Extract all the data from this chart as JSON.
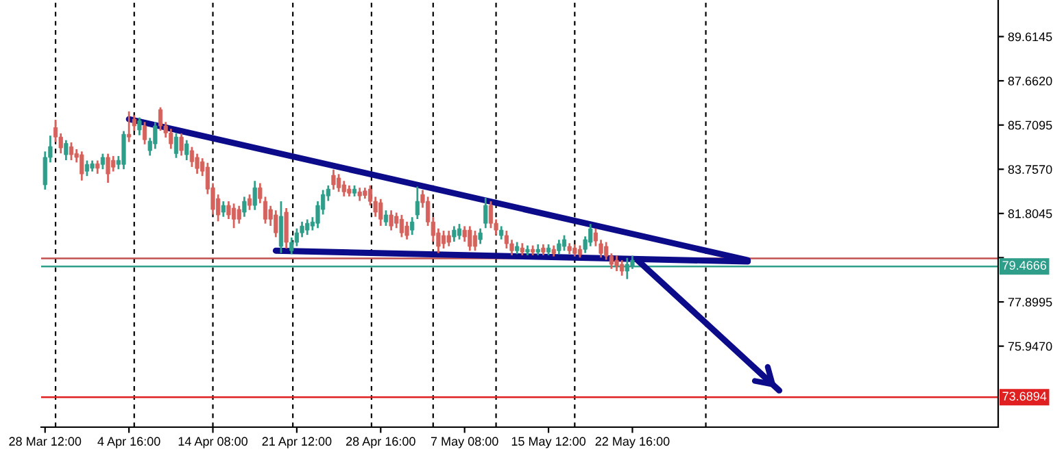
{
  "chart_data": {
    "type": "candlestick",
    "categories": [
      "28 Mar 12:00",
      null,
      null,
      null,
      null,
      null,
      null,
      null,
      null,
      null,
      null,
      null,
      null,
      null,
      null,
      null,
      "4 Apr 16:00",
      null,
      null,
      null,
      null,
      null,
      null,
      null,
      null,
      null,
      null,
      null,
      null,
      null,
      null,
      null,
      "14 Apr 08:00",
      null,
      null,
      null,
      null,
      null,
      null,
      null,
      null,
      null,
      null,
      null,
      null,
      null,
      null,
      null,
      "21 Apr 12:00",
      null,
      null,
      null,
      null,
      null,
      null,
      null,
      null,
      null,
      null,
      null,
      null,
      null,
      null,
      null,
      "28 Apr 16:00",
      null,
      null,
      null,
      null,
      null,
      null,
      null,
      null,
      null,
      null,
      null,
      null,
      null,
      null,
      null,
      "7 May 08:00",
      null,
      null,
      null,
      null,
      null,
      null,
      null,
      null,
      null,
      null,
      null,
      null,
      null,
      null,
      null,
      "15 May 12:00",
      null,
      null,
      null,
      null,
      null,
      null,
      null,
      null,
      null,
      null,
      null,
      null,
      null,
      null,
      null,
      "22 May 16:00",
      null,
      null,
      null,
      null,
      null,
      null,
      null,
      null,
      null,
      null,
      null,
      null,
      null,
      null,
      null,
      null,
      null,
      null,
      null,
      null,
      null,
      null,
      null,
      null,
      null,
      null,
      null,
      null,
      null,
      null,
      null,
      null,
      null,
      null,
      null,
      null,
      null,
      null,
      null,
      null,
      null,
      null,
      null,
      null,
      null,
      null,
      null,
      null,
      null,
      null,
      null,
      null,
      null,
      null,
      null,
      null,
      null,
      null,
      null,
      null,
      null,
      null,
      null,
      null,
      null,
      null,
      null,
      null,
      null
    ],
    "ohlc": [
      [
        83.07,
        84.5,
        82.9,
        84.28
      ],
      [
        84.28,
        85.2,
        84.1,
        84.76
      ],
      [
        85.6,
        85.9,
        85.0,
        85.18
      ],
      [
        85.18,
        85.3,
        84.5,
        84.7
      ],
      [
        84.4,
        85.0,
        84.2,
        84.9
      ],
      [
        84.75,
        84.9,
        84.2,
        84.4
      ],
      [
        84.45,
        84.6,
        84.1,
        84.28
      ],
      [
        84.4,
        84.5,
        83.3,
        83.55
      ],
      [
        83.67,
        84.1,
        83.5,
        83.97
      ],
      [
        83.8,
        84.1,
        83.7,
        84.0
      ],
      [
        84.0,
        84.1,
        83.6,
        83.8
      ],
      [
        83.97,
        84.4,
        83.8,
        84.28
      ],
      [
        84.28,
        84.4,
        83.2,
        83.55
      ],
      [
        84.15,
        84.3,
        83.7,
        83.85
      ],
      [
        83.97,
        84.3,
        83.8,
        84.15
      ],
      [
        83.97,
        85.4,
        83.8,
        85.3
      ],
      [
        85.3,
        86.27,
        85.0,
        85.18
      ],
      [
        85.97,
        86.1,
        85.5,
        85.67
      ],
      [
        85.49,
        86.0,
        85.3,
        85.9
      ],
      [
        85.67,
        85.8,
        84.9,
        85.06
      ],
      [
        84.58,
        85.1,
        84.4,
        85.0
      ],
      [
        84.88,
        85.8,
        84.7,
        85.67
      ],
      [
        86.39,
        86.45,
        85.5,
        85.67
      ],
      [
        85.67,
        85.8,
        85.2,
        85.36
      ],
      [
        85.36,
        85.5,
        84.7,
        84.88
      ],
      [
        84.45,
        85.3,
        84.3,
        85.18
      ],
      [
        85.18,
        85.3,
        84.4,
        84.58
      ],
      [
        84.4,
        85.0,
        84.2,
        84.88
      ],
      [
        84.58,
        84.7,
        83.9,
        84.09
      ],
      [
        84.28,
        84.4,
        83.6,
        83.79
      ],
      [
        84.09,
        84.2,
        83.5,
        83.67
      ],
      [
        83.85,
        84.0,
        82.7,
        82.88
      ],
      [
        82.94,
        83.1,
        81.8,
        81.98
      ],
      [
        82.46,
        82.6,
        81.5,
        81.74
      ],
      [
        81.86,
        82.3,
        81.7,
        82.16
      ],
      [
        82.16,
        82.3,
        81.6,
        81.74
      ],
      [
        82.04,
        82.2,
        81.2,
        81.55
      ],
      [
        81.98,
        82.1,
        81.4,
        81.55
      ],
      [
        81.86,
        82.5,
        81.7,
        82.34
      ],
      [
        82.46,
        82.6,
        82.0,
        82.16
      ],
      [
        82.16,
        83.2,
        82.0,
        82.94
      ],
      [
        82.94,
        83.1,
        82.3,
        82.46
      ],
      [
        82.34,
        82.5,
        81.4,
        81.55
      ],
      [
        81.98,
        82.1,
        81.3,
        81.55
      ],
      [
        81.74,
        81.9,
        80.8,
        80.95
      ],
      [
        80.35,
        82.3,
        80.1,
        81.68
      ],
      [
        81.86,
        82.0,
        80.3,
        80.53
      ],
      [
        80.16,
        80.7,
        80.05,
        80.53
      ],
      [
        80.53,
        81.1,
        80.4,
        80.95
      ],
      [
        80.95,
        81.4,
        80.8,
        81.25
      ],
      [
        81.07,
        81.5,
        80.9,
        81.37
      ],
      [
        81.25,
        81.6,
        81.1,
        81.43
      ],
      [
        81.37,
        82.3,
        81.2,
        82.16
      ],
      [
        81.98,
        82.8,
        81.8,
        82.64
      ],
      [
        82.58,
        83.0,
        82.4,
        82.88
      ],
      [
        83.49,
        83.7,
        82.9,
        83.07
      ],
      [
        83.37,
        83.5,
        82.8,
        82.94
      ],
      [
        83.07,
        83.2,
        82.6,
        82.76
      ],
      [
        82.88,
        83.0,
        82.6,
        82.7
      ],
      [
        82.7,
        83.0,
        82.6,
        82.88
      ],
      [
        82.76,
        82.9,
        82.4,
        82.58
      ],
      [
        82.8,
        82.9,
        82.5,
        82.6
      ],
      [
        82.88,
        83.0,
        82.2,
        82.34
      ],
      [
        82.34,
        82.5,
        81.7,
        81.86
      ],
      [
        82.28,
        82.4,
        81.3,
        81.55
      ],
      [
        81.43,
        81.9,
        81.3,
        81.74
      ],
      [
        81.74,
        81.9,
        81.1,
        81.25
      ],
      [
        81.68,
        81.8,
        81.2,
        81.37
      ],
      [
        81.55,
        81.7,
        80.8,
        80.95
      ],
      [
        81.25,
        81.4,
        80.7,
        80.83
      ],
      [
        81.07,
        81.6,
        80.9,
        81.43
      ],
      [
        81.74,
        82.95,
        81.6,
        82.34
      ],
      [
        82.64,
        82.8,
        82.1,
        82.28
      ],
      [
        82.34,
        82.5,
        81.3,
        81.43
      ],
      [
        81.43,
        81.6,
        80.6,
        80.83
      ],
      [
        80.95,
        81.1,
        80.1,
        80.35
      ],
      [
        80.83,
        81.0,
        80.3,
        80.47
      ],
      [
        80.83,
        81.0,
        80.4,
        80.53
      ],
      [
        80.77,
        81.2,
        80.6,
        81.07
      ],
      [
        80.83,
        81.3,
        80.7,
        81.13
      ],
      [
        81.07,
        81.2,
        80.6,
        80.77
      ],
      [
        81.07,
        81.2,
        80.2,
        80.35
      ],
      [
        80.83,
        81.0,
        80.2,
        80.35
      ],
      [
        80.65,
        81.1,
        80.5,
        80.95
      ],
      [
        81.37,
        82.46,
        81.2,
        82.16
      ],
      [
        82.16,
        82.3,
        81.2,
        81.37
      ],
      [
        81.37,
        81.5,
        80.9,
        81.07
      ],
      [
        80.83,
        81.2,
        80.7,
        81.07
      ],
      [
        80.83,
        81.0,
        80.3,
        80.47
      ],
      [
        80.47,
        80.6,
        80.0,
        80.16
      ],
      [
        80.16,
        80.5,
        80.05,
        80.35
      ],
      [
        80.28,
        80.45,
        80.0,
        80.1
      ],
      [
        80.1,
        80.35,
        80.0,
        80.22
      ],
      [
        80.22,
        80.35,
        80.0,
        80.1
      ],
      [
        80.1,
        80.4,
        80.0,
        80.22
      ],
      [
        80.28,
        80.4,
        80.0,
        80.1
      ],
      [
        80.1,
        80.4,
        80.0,
        80.28
      ],
      [
        80.22,
        80.35,
        79.95,
        80.04
      ],
      [
        80.16,
        80.6,
        80.05,
        80.47
      ],
      [
        80.35,
        80.8,
        80.2,
        80.65
      ],
      [
        80.35,
        80.45,
        80.05,
        80.16
      ],
      [
        80.28,
        80.4,
        79.95,
        80.04
      ],
      [
        80.22,
        80.35,
        79.9,
        79.98
      ],
      [
        80.22,
        80.75,
        80.1,
        80.65
      ],
      [
        80.53,
        81.3,
        80.4,
        81.13
      ],
      [
        80.95,
        81.1,
        80.4,
        80.59
      ],
      [
        80.47,
        80.6,
        79.9,
        80.04
      ],
      [
        80.35,
        80.5,
        79.8,
        79.92
      ],
      [
        79.92,
        80.0,
        79.4,
        79.56
      ],
      [
        79.74,
        79.9,
        79.3,
        79.5
      ],
      [
        79.56,
        79.7,
        79.1,
        79.26
      ],
      [
        79.26,
        79.8,
        78.95,
        79.56
      ],
      [
        79.5,
        79.9,
        79.4,
        79.74
      ],
      null,
      null,
      null,
      null,
      null,
      null,
      null,
      null,
      null,
      null,
      null,
      null,
      null,
      null,
      null,
      null,
      null,
      null,
      null,
      null,
      null,
      null,
      null,
      null,
      null,
      null,
      null,
      null,
      null,
      null,
      null,
      null,
      null,
      null,
      null,
      null,
      null,
      null,
      null,
      null,
      null,
      null,
      null,
      null,
      null,
      null,
      null,
      null,
      null,
      null,
      null,
      null,
      null,
      null,
      null,
      null,
      null,
      null,
      null,
      null,
      null,
      null,
      null,
      null,
      null,
      null,
      null,
      null,
      null
    ],
    "colors": [
      "#2e9e8a",
      "#2e9e8a",
      "#d5625c",
      "#d5625c",
      "#2e9e8a",
      "#d5625c",
      "#d5625c",
      "#d5625c",
      "#2e9e8a",
      "#2e9e8a",
      "#d5625c",
      "#2e9e8a",
      "#d5625c",
      "#d5625c",
      "#2e9e8a",
      "#2e9e8a",
      "#d5625c",
      "#d5625c",
      "#2e9e8a",
      "#d5625c",
      "#2e9e8a",
      "#2e9e8a",
      "#d5625c",
      "#d5625c",
      "#d5625c",
      "#2e9e8a",
      "#d5625c",
      "#2e9e8a",
      "#d5625c",
      "#d5625c",
      "#d5625c",
      "#d5625c",
      "#d5625c",
      "#d5625c",
      "#2e9e8a",
      "#d5625c",
      "#d5625c",
      "#d5625c",
      "#2e9e8a",
      "#d5625c",
      "#2e9e8a",
      "#d5625c",
      "#d5625c",
      "#d5625c",
      "#d5625c",
      "#2e9e8a",
      "#d5625c",
      "#2e9e8a",
      "#2e9e8a",
      "#2e9e8a",
      "#2e9e8a",
      "#2e9e8a",
      "#2e9e8a",
      "#2e9e8a",
      "#2e9e8a",
      "#d5625c",
      "#d5625c",
      "#d5625c",
      "#d5625c",
      "#2e9e8a",
      "#d5625c",
      "#d5625c",
      "#d5625c",
      "#d5625c",
      "#d5625c",
      "#2e9e8a",
      "#d5625c",
      "#d5625c",
      "#d5625c",
      "#d5625c",
      "#2e9e8a",
      "#2e9e8a",
      "#d5625c",
      "#d5625c",
      "#d5625c",
      "#d5625c",
      "#d5625c",
      "#d5625c",
      "#2e9e8a",
      "#2e9e8a",
      "#d5625c",
      "#d5625c",
      "#d5625c",
      "#2e9e8a",
      "#2e9e8a",
      "#d5625c",
      "#d5625c",
      "#2e9e8a",
      "#d5625c",
      "#d5625c",
      "#2e9e8a",
      "#d5625c",
      "#2e9e8a",
      "#d5625c",
      "#2e9e8a",
      "#d5625c",
      "#2e9e8a",
      "#d5625c",
      "#2e9e8a",
      "#2e9e8a",
      "#d5625c",
      "#d5625c",
      "#d5625c",
      "#2e9e8a",
      "#2e9e8a",
      "#d5625c",
      "#d5625c",
      "#d5625c",
      "#d5625c",
      "#d5625c",
      "#d5625c",
      "#2e9e8a",
      "#2e9e8a",
      null,
      null,
      null,
      null,
      null,
      null,
      null,
      null,
      null,
      null,
      null,
      null,
      null,
      null,
      null,
      null,
      null,
      null,
      null,
      null,
      null,
      null,
      null,
      null,
      null,
      null,
      null,
      null,
      null,
      null,
      null,
      null,
      null,
      null,
      null,
      null,
      null,
      null,
      null,
      null,
      null,
      null,
      null,
      null,
      null,
      null,
      null,
      null,
      null,
      null,
      null,
      null,
      null,
      null,
      null,
      null,
      null,
      null,
      null,
      null,
      null,
      null,
      null,
      null,
      null,
      null,
      null,
      null,
      null
    ],
    "series": [
      {
        "type": "line",
        "color": "#0c0c8a",
        "values": [
          null,
          null,
          null,
          null,
          null,
          null,
          null,
          null,
          null,
          null,
          null,
          null,
          null,
          null,
          null,
          null,
          85.97,
          null,
          null,
          null,
          null,
          null,
          null,
          null,
          null,
          null,
          null,
          null,
          null,
          null,
          null,
          null,
          null,
          null,
          null,
          null,
          null,
          null,
          null,
          null,
          null,
          null,
          null,
          null,
          null,
          null,
          null,
          null,
          null,
          null,
          null,
          null,
          null,
          null,
          null,
          null,
          null,
          null,
          null,
          null,
          null,
          null,
          null,
          null,
          null,
          null,
          null,
          null,
          null,
          null,
          null,
          null,
          null,
          null,
          null,
          null,
          null,
          null,
          null,
          null,
          null,
          null,
          null,
          null,
          null,
          null,
          null,
          null,
          null,
          null,
          null,
          null,
          null,
          null,
          null,
          null,
          null,
          null,
          null,
          null,
          null,
          null,
          null,
          null,
          null,
          null,
          null,
          null,
          null,
          null,
          null,
          null,
          null,
          null,
          null,
          null,
          null,
          null,
          null,
          null,
          null,
          null,
          null,
          null,
          null,
          null,
          null,
          null,
          null,
          null,
          null,
          null,
          null,
          null,
          79.74,
          null,
          null,
          null,
          null,
          null,
          null,
          null,
          null,
          null,
          null,
          null,
          null,
          null,
          null,
          null,
          null,
          null,
          null,
          null,
          null,
          null,
          null,
          null,
          null,
          null,
          null,
          null,
          null,
          null,
          null,
          null,
          null,
          null,
          null,
          null,
          null,
          null,
          null,
          null,
          null,
          null,
          null,
          null,
          null,
          null,
          null,
          null
        ]
      },
      {
        "type": "line",
        "color": "#0c0c8a",
        "values": [
          null,
          null,
          null,
          null,
          null,
          null,
          null,
          null,
          null,
          null,
          null,
          null,
          null,
          null,
          null,
          null,
          null,
          null,
          null,
          null,
          null,
          null,
          null,
          null,
          null,
          null,
          null,
          null,
          null,
          null,
          null,
          null,
          null,
          null,
          null,
          null,
          null,
          null,
          null,
          null,
          null,
          null,
          null,
          null,
          80.16,
          null,
          null,
          null,
          null,
          null,
          null,
          null,
          null,
          null,
          null,
          null,
          null,
          null,
          null,
          null,
          null,
          null,
          null,
          null,
          null,
          null,
          null,
          null,
          null,
          null,
          null,
          null,
          null,
          null,
          null,
          null,
          null,
          null,
          null,
          null,
          null,
          null,
          null,
          null,
          null,
          null,
          null,
          null,
          null,
          null,
          null,
          null,
          null,
          null,
          null,
          null,
          null,
          null,
          null,
          null,
          null,
          null,
          null,
          null,
          null,
          null,
          null,
          null,
          null,
          null,
          null,
          null,
          null,
          null,
          null,
          null,
          null,
          null,
          null,
          null,
          null,
          null,
          null,
          null,
          null,
          null,
          null,
          null,
          null,
          null,
          null,
          null,
          null,
          null,
          79.68,
          null,
          null,
          null,
          null,
          null,
          null,
          null,
          null,
          null,
          null,
          null,
          null,
          null,
          null,
          null,
          null,
          null,
          null,
          null,
          null,
          null,
          null,
          null,
          null,
          null,
          null,
          null,
          null,
          null,
          null,
          null,
          null,
          null,
          null,
          null,
          null,
          null,
          null,
          null,
          null,
          null,
          null,
          null,
          null,
          null,
          null,
          null
        ]
      },
      {
        "type": "line",
        "color": "#0c0c8a",
        "values": [
          null,
          null,
          null,
          null,
          null,
          null,
          null,
          null,
          null,
          null,
          null,
          null,
          null,
          null,
          null,
          null,
          null,
          null,
          null,
          null,
          null,
          null,
          null,
          null,
          null,
          null,
          null,
          null,
          null,
          null,
          null,
          null,
          null,
          null,
          null,
          null,
          null,
          null,
          null,
          null,
          null,
          null,
          null,
          null,
          null,
          null,
          null,
          null,
          null,
          null,
          null,
          null,
          null,
          null,
          null,
          null,
          null,
          null,
          null,
          null,
          null,
          null,
          null,
          null,
          null,
          null,
          null,
          null,
          null,
          null,
          null,
          null,
          null,
          null,
          null,
          null,
          null,
          null,
          null,
          null,
          null,
          null,
          null,
          null,
          null,
          null,
          null,
          null,
          null,
          null,
          null,
          null,
          null,
          null,
          null,
          null,
          null,
          null,
          null,
          null,
          null,
          null,
          null,
          null,
          null,
          null,
          null,
          null,
          null,
          null,
          null,
          null,
          null,
          79.74,
          null,
          null,
          null,
          null,
          null,
          null,
          null,
          null,
          null,
          null,
          null,
          null,
          null,
          null,
          null,
          null,
          null,
          null,
          null,
          null,
          null,
          null,
          null,
          null,
          null,
          null,
          73.99,
          null,
          null,
          null,
          null,
          null,
          null,
          null,
          null,
          null,
          null,
          null,
          null,
          null,
          null,
          null,
          null,
          null,
          null,
          null,
          null,
          null,
          null,
          null,
          null,
          null,
          null,
          null,
          null,
          null,
          null,
          null,
          null,
          null,
          null,
          null,
          null,
          null,
          null,
          null,
          null,
          null
        ]
      }
    ],
    "ref_lines": [
      {
        "axis": "y",
        "value": 79.82,
        "color": "#c0504d",
        "line_style": "solid"
      },
      {
        "axis": "y",
        "value": 79.4666,
        "label": "79.4666",
        "color": "#2e9e8a",
        "line_style": "solid"
      },
      {
        "axis": "y",
        "value": 73.6894,
        "label": "73.6894",
        "color": "#e02020",
        "line_style": "solid"
      }
    ],
    "ylim": [
      72.37,
      91.23
    ],
    "yticks": [
      89.6145,
      {
        "value": 87.662,
        "label": "87.6620"
      },
      85.7095,
      {
        "value": 83.757,
        "label": "83.7570"
      },
      81.8045,
      {
        "value": 79.852,
        "label": null
      },
      77.8995,
      {
        "value": 75.947,
        "label": "75.9470"
      }
    ],
    "grid": false,
    "legend": false
  }
}
